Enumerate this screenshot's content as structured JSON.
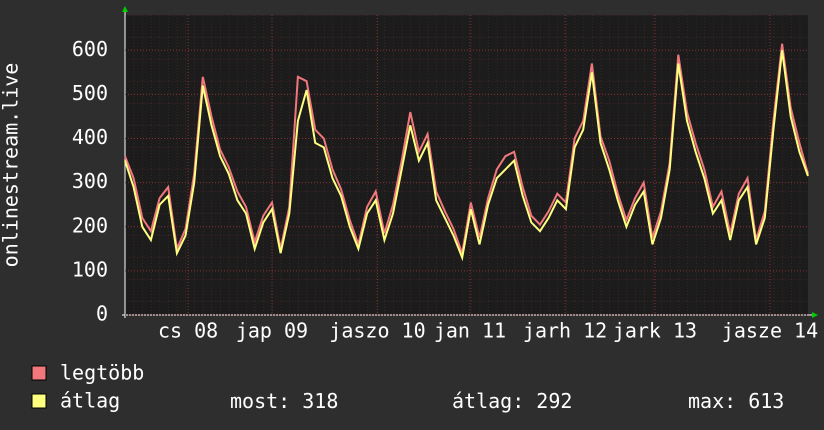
{
  "chart_data": {
    "type": "line",
    "y_label": "onlinestream.live",
    "categories": [
      null,
      null,
      null,
      null,
      null,
      null,
      null,
      null,
      null,
      null,
      null,
      null,
      null,
      null,
      null,
      null,
      null,
      null,
      null,
      null,
      null,
      null,
      null,
      null,
      null,
      null,
      null,
      null,
      null,
      null,
      null,
      null,
      null,
      null,
      null,
      null,
      null,
      null,
      null,
      null,
      null,
      null,
      null,
      null,
      null,
      null,
      null,
      null,
      null,
      null,
      null,
      null,
      null,
      null,
      null,
      null,
      null,
      null,
      null,
      null,
      null,
      null,
      null,
      null,
      null,
      null,
      null,
      null,
      null,
      null,
      null,
      null,
      null,
      null,
      null,
      null,
      null,
      null,
      null,
      null
    ],
    "series": [
      {
        "name": "legtöbb",
        "color": "#f0787c",
        "values": [
          360,
          310,
          220,
          190,
          265,
          290,
          150,
          195,
          320,
          540,
          450,
          375,
          335,
          280,
          245,
          165,
          225,
          255,
          150,
          245,
          540,
          530,
          420,
          400,
          330,
          285,
          215,
          160,
          245,
          280,
          185,
          250,
          350,
          460,
          370,
          410,
          280,
          235,
          195,
          140,
          255,
          175,
          265,
          330,
          360,
          370,
          290,
          225,
          205,
          235,
          275,
          255,
          400,
          440,
          570,
          405,
          350,
          275,
          215,
          265,
          300,
          175,
          235,
          345,
          590,
          460,
          390,
          330,
          245,
          280,
          185,
          275,
          310,
          170,
          235,
          440,
          615,
          470,
          390,
          320
        ]
      },
      {
        "name": "átlag",
        "color": "#ffff80",
        "values": [
          350,
          290,
          200,
          170,
          250,
          270,
          140,
          180,
          300,
          520,
          430,
          360,
          320,
          260,
          230,
          150,
          210,
          240,
          140,
          230,
          440,
          510,
          390,
          380,
          310,
          270,
          200,
          150,
          230,
          260,
          170,
          230,
          330,
          430,
          350,
          390,
          260,
          220,
          180,
          130,
          240,
          160,
          250,
          310,
          330,
          350,
          270,
          210,
          190,
          220,
          260,
          240,
          380,
          420,
          550,
          390,
          330,
          260,
          200,
          250,
          280,
          160,
          220,
          330,
          570,
          440,
          370,
          310,
          230,
          260,
          170,
          260,
          290,
          160,
          220,
          420,
          600,
          450,
          370,
          315
        ]
      }
    ],
    "xticks": [
      {
        "value": 7.3,
        "label": "cs 08"
      },
      {
        "value": 17,
        "label": "jap 09"
      },
      {
        "value": 29.2,
        "label": "jaszo 10"
      },
      {
        "value": 39.9,
        "label": "jan 11"
      },
      {
        "value": 50.9,
        "label": "jarh 12"
      },
      {
        "value": 61.3,
        "label": "jark 13"
      },
      {
        "value": 74.6,
        "label": "jasze 14"
      }
    ],
    "ylim": [
      0,
      680
    ],
    "yticks": [
      0,
      100,
      200,
      300,
      400,
      500,
      600
    ],
    "grid": true,
    "stats": [
      {
        "label": "most:",
        "value": 318
      },
      {
        "label": "átlag:",
        "value": 292
      },
      {
        "label": "max:",
        "value": 613
      }
    ]
  }
}
